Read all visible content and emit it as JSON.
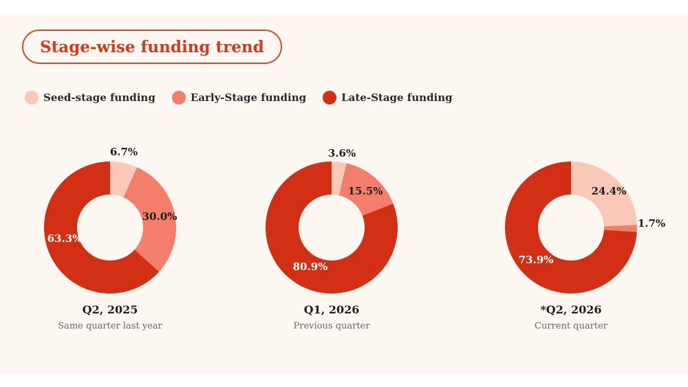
{
  "title": "Stage-wise funding trend",
  "colors": {
    "accent": "#cf3b1c",
    "seed": "#f9c8b8",
    "early": "#f47e6a",
    "late": "#d32f14",
    "background": "#fdf7f2"
  },
  "chart_data": {
    "type": "pie",
    "title": "Stage-wise funding trend",
    "legend": [
      {
        "name": "Seed-stage funding",
        "color": "#f9c8b8"
      },
      {
        "name": "Early-Stage funding",
        "color": "#f47e6a"
      },
      {
        "name": "Late-Stage funding",
        "color": "#d32f14"
      }
    ],
    "legend_position": "top-left",
    "charts": [
      {
        "label": "Q2, 2025",
        "sublabel": "Same quarter last year",
        "slices": [
          {
            "name": "Seed-stage funding",
            "value": 6.7,
            "label": "6.7%"
          },
          {
            "name": "Early-Stage funding",
            "value": 30.0,
            "label": "30.0%"
          },
          {
            "name": "Late-Stage funding",
            "value": 63.3,
            "label": "63.3%"
          }
        ]
      },
      {
        "label": "Q1, 2026",
        "sublabel": "Previous quarter",
        "slices": [
          {
            "name": "Seed-stage funding",
            "value": 3.6,
            "label": "3.6%"
          },
          {
            "name": "Early-Stage funding",
            "value": 15.5,
            "label": "15.5%"
          },
          {
            "name": "Late-Stage funding",
            "value": 80.9,
            "label": "80.9%"
          }
        ]
      },
      {
        "label": "*Q2, 2026",
        "sublabel": "Current quarter",
        "slices": [
          {
            "name": "Seed-stage funding",
            "value": 24.4,
            "label": "24.4%"
          },
          {
            "name": "Early-Stage funding",
            "value": 1.7,
            "label": "1.7%"
          },
          {
            "name": "Late-Stage funding",
            "value": 73.9,
            "label": "73.9%"
          }
        ]
      }
    ]
  }
}
